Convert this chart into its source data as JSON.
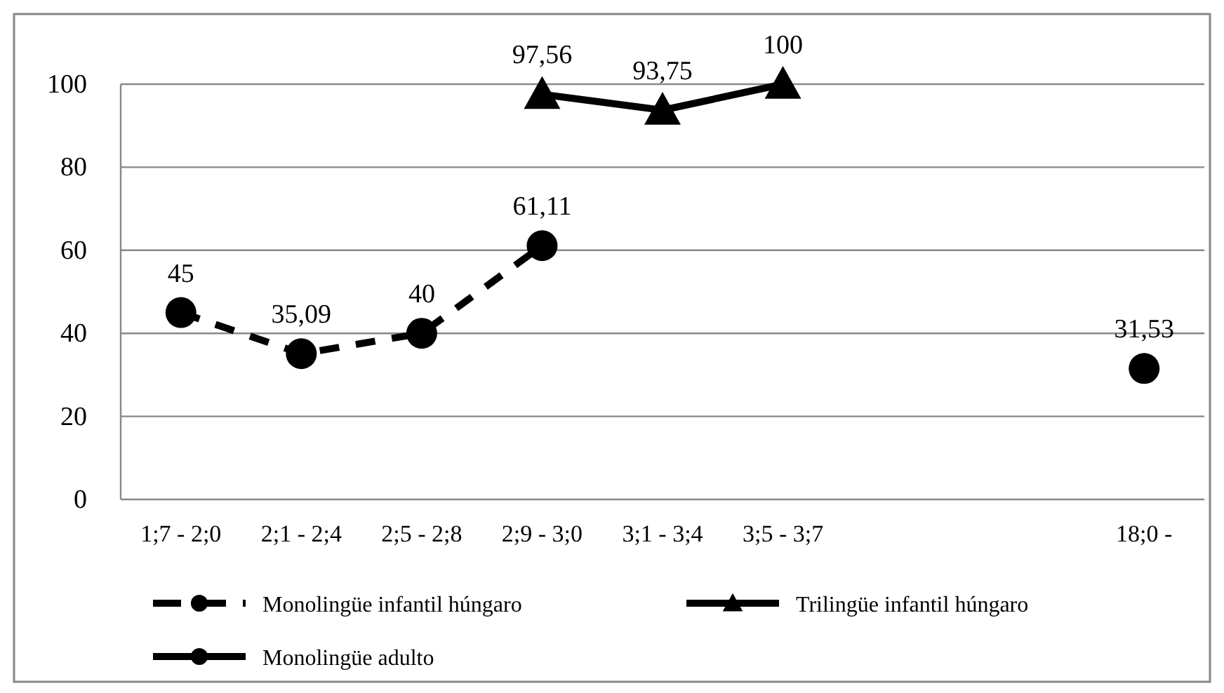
{
  "chart_data": {
    "type": "line",
    "categories": [
      "1;7 - 2;0",
      "2;1 - 2;4",
      "2;5 - 2;8",
      "2;9 - 3;0",
      "3;1 - 3;4",
      "3;5 - 3;7",
      null,
      null,
      "18;0 -"
    ],
    "series": [
      {
        "name": "Monolingüe infantil húngaro",
        "color": "#000000",
        "marker": "circle",
        "line_style": "dashed",
        "values": [
          45,
          35.09,
          40,
          61.11,
          null,
          null,
          null,
          null,
          null
        ],
        "value_labels": [
          "45",
          "35,09",
          "40",
          "61,11",
          null,
          null,
          null,
          null,
          null
        ]
      },
      {
        "name": "Trilingüe infantil húngaro",
        "color": "#000000",
        "marker": "triangle",
        "line_style": "solid",
        "values": [
          null,
          null,
          null,
          97.56,
          93.75,
          100,
          null,
          null,
          null
        ],
        "value_labels": [
          null,
          null,
          null,
          "97,56",
          "93,75",
          "100",
          null,
          null,
          null
        ]
      },
      {
        "name": "Monolingüe adulto",
        "color": "#000000",
        "marker": "circle",
        "line_style": "solid",
        "values": [
          null,
          null,
          null,
          null,
          null,
          null,
          null,
          null,
          31.53
        ],
        "value_labels": [
          null,
          null,
          null,
          null,
          null,
          null,
          null,
          null,
          "31,53"
        ]
      }
    ],
    "ylim": [
      0,
      100
    ],
    "yticks": [
      0,
      20,
      40,
      60,
      80,
      100
    ],
    "grid": "y",
    "legend": "bottom"
  }
}
